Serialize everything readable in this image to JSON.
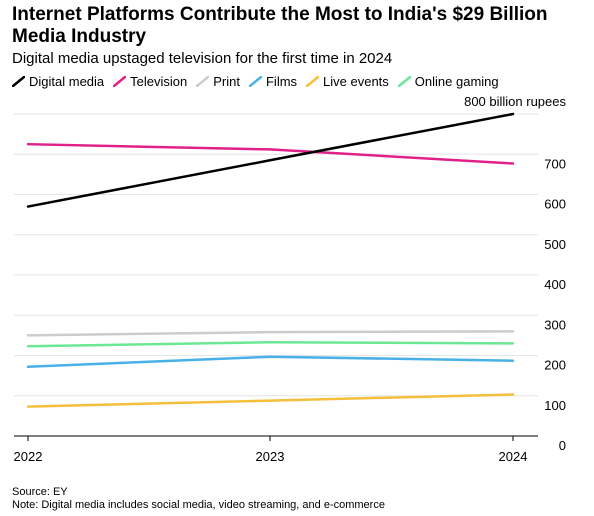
{
  "title": "Internet Platforms Contribute the Most to India's $29 Billion Media Industry",
  "subtitle": "Digital media upstaged television for the first time in 2024",
  "footer": {
    "source": "Source: EY",
    "note": "Note: Digital media includes social media, video streaming, and e-commerce"
  },
  "chart_data": {
    "type": "line",
    "x": [
      "2022",
      "2023",
      "2024"
    ],
    "y_unit_label": "800 billion rupees",
    "yticks": [
      0,
      100,
      200,
      300,
      400,
      500,
      600,
      700,
      800
    ],
    "ylim": [
      0,
      800
    ],
    "grid": true,
    "legend_position": "top",
    "series": [
      {
        "name": "Digital media",
        "color": "#000000",
        "values": [
          570,
          685,
          800
        ]
      },
      {
        "name": "Television",
        "color": "#e0218a",
        "values": [
          725,
          712,
          677
        ]
      },
      {
        "name": "Print",
        "color": "#cccccc",
        "values": [
          250,
          258,
          260
        ]
      },
      {
        "name": "Films",
        "color": "#4ab0e8",
        "values": [
          172,
          197,
          187
        ]
      },
      {
        "name": "Live events",
        "color": "#f5bf3b",
        "values": [
          73,
          88,
          103
        ]
      },
      {
        "name": "Online gaming",
        "color": "#6ce895",
        "values": [
          223,
          233,
          230
        ]
      }
    ]
  }
}
